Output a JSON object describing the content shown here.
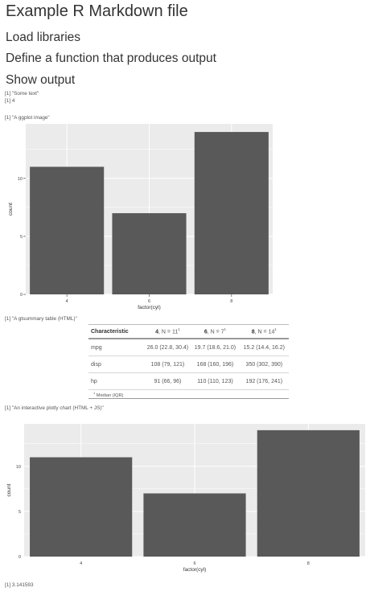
{
  "headings": {
    "title": "Example R Markdown file",
    "load": "Load libraries",
    "define": "Define a function that produces output",
    "show": "Show output"
  },
  "outputs": {
    "o1": "[1] \"Some text\"",
    "o2": "[1] 4",
    "o3": "[1] \"A ggplot image\"",
    "o4": "[1] \"A gtsummary table (HTML)\"",
    "o5": "[1] \"An interactive plotly chart (HTML + JS)\"",
    "o6": "[1] 3.141593"
  },
  "chart_data": [
    {
      "type": "bar",
      "categories": [
        "4",
        "6",
        "8"
      ],
      "values": [
        11,
        7,
        14
      ],
      "xlabel": "factor(cyl)",
      "ylabel": "count",
      "yticks": [
        0,
        5,
        10
      ],
      "ylim": [
        0,
        14.7
      ],
      "grid": true,
      "colors": {
        "bar": "#595959",
        "panel": "#ebebeb",
        "grid": "#ffffff"
      }
    },
    {
      "type": "bar",
      "categories": [
        "4",
        "6",
        "8"
      ],
      "values": [
        11,
        7,
        14
      ],
      "xlabel": "factor(cyl)",
      "ylabel": "count",
      "yticks": [
        0,
        5,
        10
      ],
      "ylim": [
        0,
        14.7
      ],
      "grid": true,
      "colors": {
        "bar": "#595959",
        "panel": "#ebebeb",
        "grid": "#ffffff"
      }
    }
  ],
  "table": {
    "header": {
      "characteristic": "Characteristic",
      "c4_num": "4",
      "c4_n": ", N = 11",
      "c6_num": "6",
      "c6_n": ", N = 7",
      "c8_num": "8",
      "c8_n": ", N = 14",
      "mark": "1"
    },
    "rows": [
      {
        "label": "mpg",
        "c4": "26.0 (22.8, 30.4)",
        "c6": "19.7 (18.6, 21.0)",
        "c8": "15.2 (14.4, 16.2)"
      },
      {
        "label": "disp",
        "c4": "108 (79, 121)",
        "c6": "168 (160, 196)",
        "c8": "350 (302, 390)"
      },
      {
        "label": "hp",
        "c4": "91 (66, 96)",
        "c6": "110 (110, 123)",
        "c8": "192 (176, 241)"
      }
    ],
    "footnote_mark": "1",
    "footnote": " Median (IQR)"
  }
}
